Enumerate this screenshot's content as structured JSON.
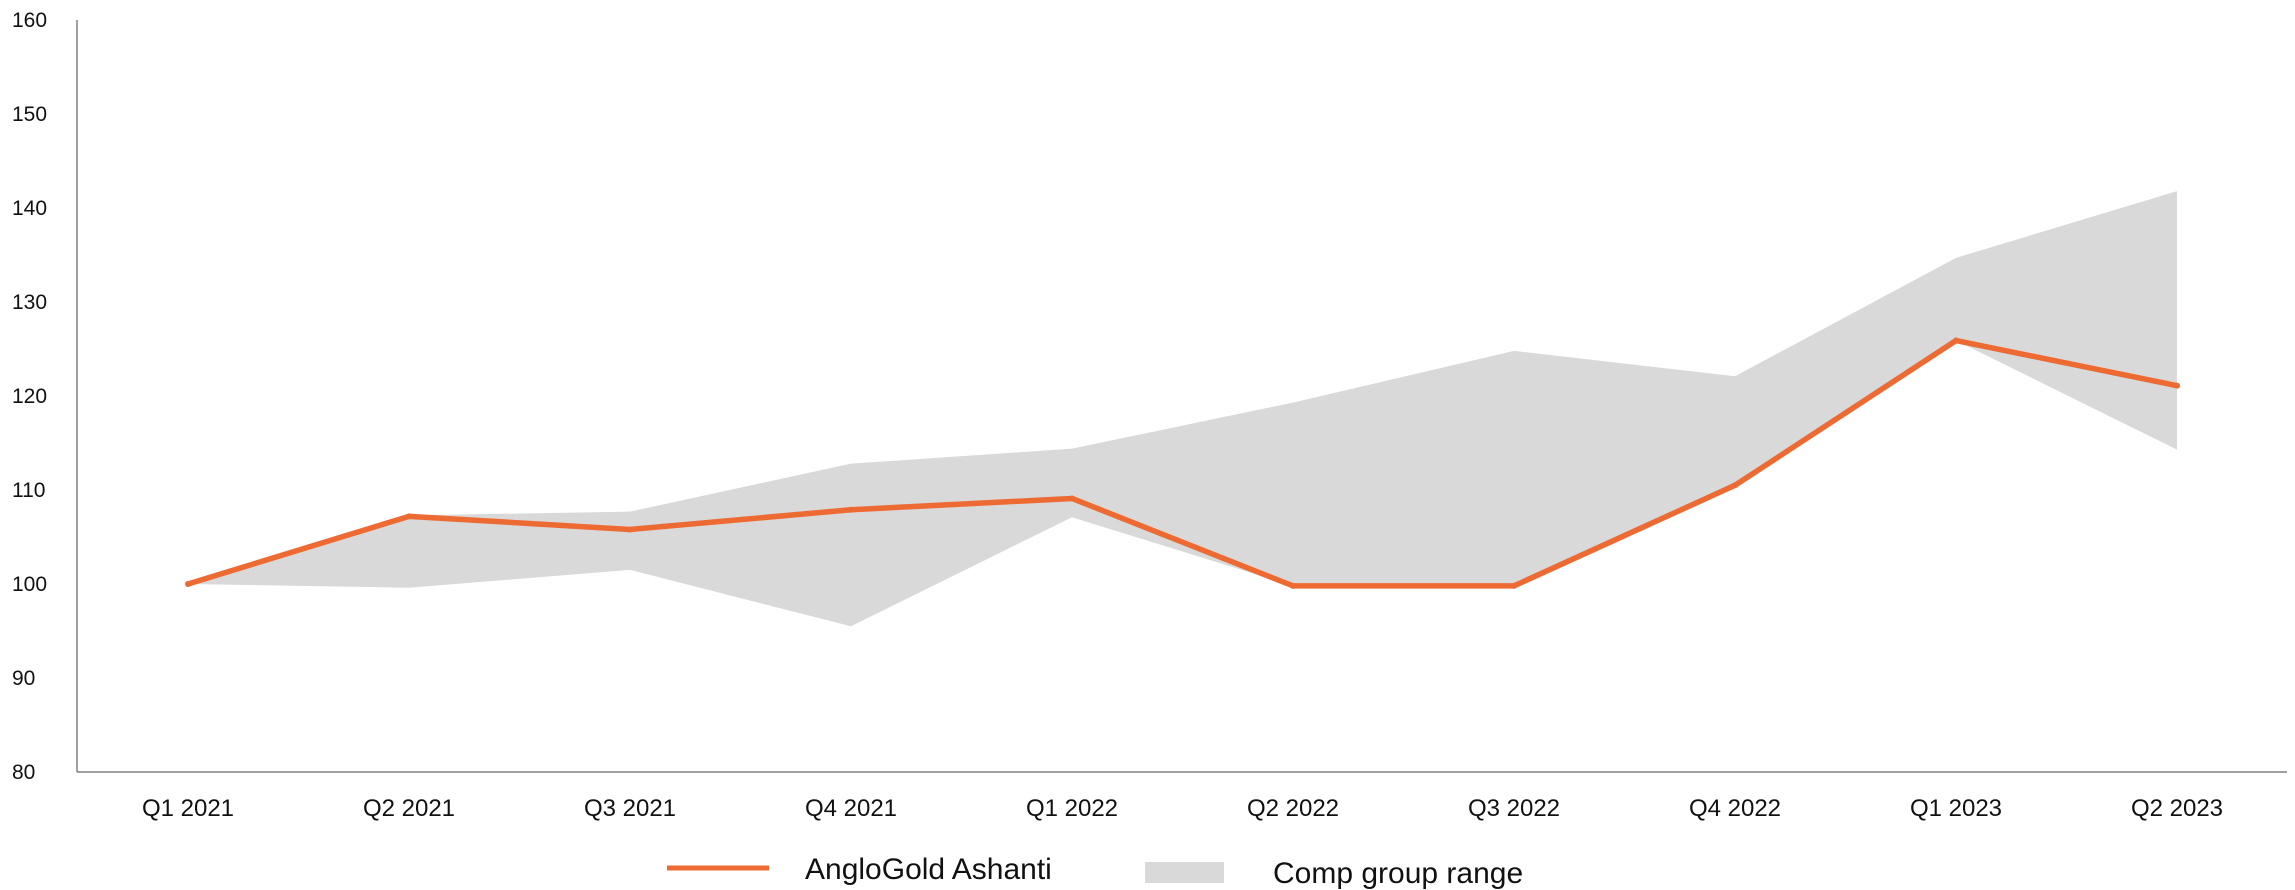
{
  "chart_data": {
    "type": "line",
    "title": "",
    "xlabel": "",
    "ylabel": "",
    "categories": [
      "Q1 2021",
      "Q2 2021",
      "Q3 2021",
      "Q4 2021",
      "Q1 2022",
      "Q2 2022",
      "Q3 2022",
      "Q4 2022",
      "Q1 2023",
      "Q2 2023"
    ],
    "y_ticks": [
      "80",
      "90",
      "100",
      "110",
      "120",
      "130",
      "140",
      "150",
      "160"
    ],
    "ylim": [
      80,
      160
    ],
    "grid": false,
    "legend_position": "bottom",
    "series": [
      {
        "name": "AngloGold Ashanti",
        "kind": "line",
        "color": "#EE6A33",
        "values": [
          100,
          107.2,
          105.8,
          107.9,
          109.1,
          99.8,
          99.8,
          110.5,
          125.9,
          121.1
        ]
      },
      {
        "name": "Comp group range",
        "kind": "range",
        "color": "#D9D9D9",
        "upper": [
          100,
          107.3,
          107.7,
          112.8,
          114.4,
          119.3,
          124.8,
          122.1,
          134.7,
          141.8
        ],
        "lower": [
          100,
          99.6,
          101.5,
          95.5,
          107.1,
          99.8,
          99.8,
          110.5,
          125.9,
          114.3
        ]
      }
    ]
  }
}
